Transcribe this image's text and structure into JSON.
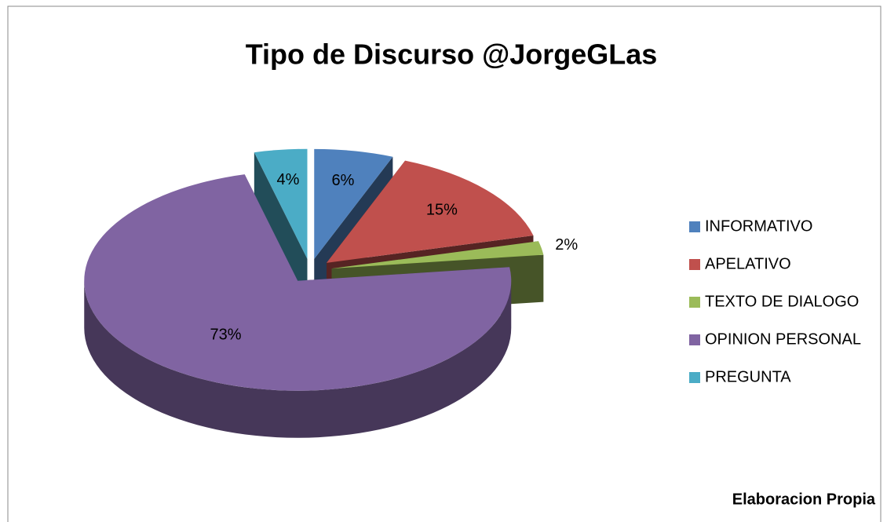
{
  "chart_data": {
    "type": "pie",
    "title": "Tipo de Discurso @JorgeGLas",
    "categories": [
      "INFORMATIVO",
      "APELATIVO",
      "TEXTO DE DIALOGO",
      "OPINION PERSONAL",
      "PREGUNTA"
    ],
    "values": [
      6,
      15,
      2,
      73,
      4
    ],
    "value_labels": [
      "6%",
      "15%",
      "2%",
      "73%",
      "4%"
    ],
    "colors": [
      "#4f81bd",
      "#c0504d",
      "#9bbb59",
      "#8064a2",
      "#4bacc6"
    ],
    "legend": "right",
    "annotation": "Elaboracion Propia"
  }
}
